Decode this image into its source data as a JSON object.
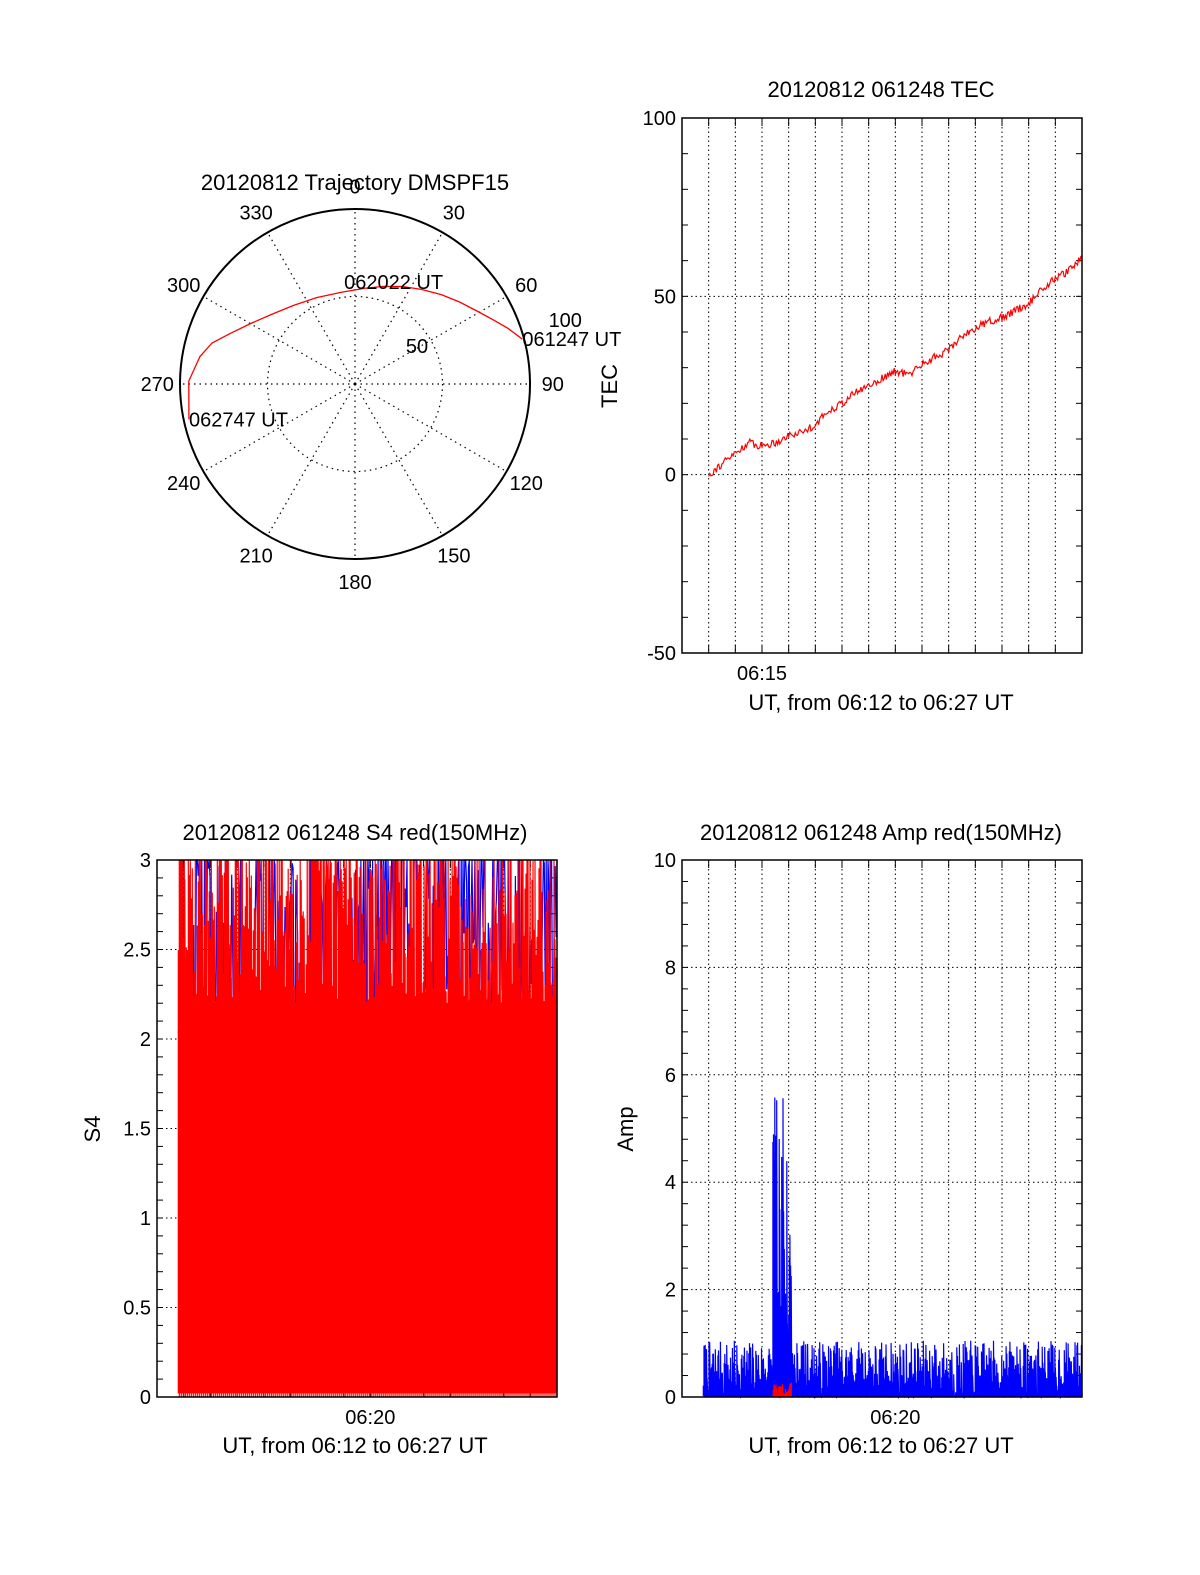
{
  "colors": {
    "primary": "#ff0000",
    "secondary": "#0000ff",
    "axis": "#000000",
    "grid": "#000000"
  },
  "chart_data": [
    {
      "id": "trajectory",
      "type": "polar",
      "title": "20120812 Trajectory DMSPF15",
      "angle_labels": [
        "0",
        "30",
        "60",
        "90",
        "120",
        "150",
        "180",
        "210",
        "240",
        "270",
        "300",
        "330"
      ],
      "angle_values": [
        0,
        30,
        60,
        90,
        120,
        150,
        180,
        210,
        240,
        270,
        300,
        330
      ],
      "radial_range": [
        0,
        100
      ],
      "radial_ticks": [
        {
          "value": 50,
          "label": "50"
        },
        {
          "value": 100,
          "label": "100"
        }
      ],
      "track": [
        {
          "az": 75,
          "r": 99
        },
        {
          "az": 70,
          "r": 93
        },
        {
          "az": 65,
          "r": 87
        },
        {
          "az": 60,
          "r": 82
        },
        {
          "az": 52,
          "r": 76
        },
        {
          "az": 44,
          "r": 71
        },
        {
          "az": 35,
          "r": 66
        },
        {
          "az": 26,
          "r": 62
        },
        {
          "az": 16,
          "r": 58
        },
        {
          "az": 6,
          "r": 55
        },
        {
          "az": 352,
          "r": 53
        },
        {
          "az": 336,
          "r": 54
        },
        {
          "az": 322,
          "r": 57
        },
        {
          "az": 310,
          "r": 62
        },
        {
          "az": 300,
          "r": 69
        },
        {
          "az": 292,
          "r": 77
        },
        {
          "az": 286,
          "r": 85
        },
        {
          "az": 280,
          "r": 90
        },
        {
          "az": 271,
          "r": 95
        },
        {
          "az": 258,
          "r": 97
        }
      ],
      "annotations": [
        {
          "text": "061247 UT",
          "az": 75,
          "r": 99
        },
        {
          "text": "062022 UT",
          "az": 20,
          "r": 62
        },
        {
          "text": "062747 UT",
          "az": 258,
          "r": 97
        }
      ]
    },
    {
      "id": "tec",
      "type": "line",
      "title": "20120812 061248 TEC",
      "ylabel": "TEC",
      "xlabel": "UT, from 06:12 to 06:27 UT",
      "xlim": [
        0,
        15
      ],
      "ylim": [
        -50,
        100
      ],
      "yticks": [
        -50,
        0,
        50,
        100
      ],
      "xticks": [
        {
          "value": 3,
          "label": "06:15"
        }
      ],
      "x_start_label": "06:12",
      "series": [
        {
          "color": "primary",
          "x": [
            1,
            1.5,
            2,
            2.5,
            3,
            3.5,
            4,
            4.5,
            5,
            5.5,
            6,
            6.5,
            7,
            7.5,
            8,
            8.5,
            9,
            9.5,
            10,
            10.5,
            11,
            11.5,
            12,
            12.5,
            13,
            13.5,
            14,
            14.5,
            15
          ],
          "y": [
            0,
            3,
            6,
            9,
            8,
            9,
            11,
            12,
            14,
            18,
            20,
            23,
            25,
            27,
            29,
            28,
            31,
            33,
            35,
            39,
            41,
            43,
            44,
            46,
            48,
            52,
            55,
            57,
            61
          ]
        }
      ]
    },
    {
      "id": "s4",
      "type": "line",
      "title": "20120812 061248 S4 red(150MHz)",
      "ylabel": "S4",
      "xlabel": "UT, from 06:12 to 06:27 UT",
      "xlim": [
        0,
        15
      ],
      "ylim": [
        0,
        3
      ],
      "yticks": [
        0,
        0.5,
        1,
        1.5,
        2,
        2.5,
        3
      ],
      "xticks": [
        {
          "value": 8,
          "label": "06:20"
        }
      ],
      "x_start_label": "06:12",
      "series": [
        {
          "color": "secondary",
          "seed": 11,
          "x_range": [
            0.8,
            15
          ],
          "samples": 420,
          "mean": 2.5,
          "noise": 0.9,
          "dips": [
            {
              "x": 3.4,
              "w": 0.5,
              "v": 0.28
            },
            {
              "x": 1.2,
              "w": 0.3,
              "v": 1.3
            },
            {
              "x": 5.5,
              "w": 0.4,
              "v": 1.0
            },
            {
              "x": 7.0,
              "w": 0.3,
              "v": 1.1
            }
          ]
        },
        {
          "color": "primary",
          "seed": 29,
          "x_range": [
            0.8,
            15
          ],
          "samples": 380,
          "mean": 2.8,
          "noise": 0.6
        }
      ]
    },
    {
      "id": "amp",
      "type": "line",
      "title": "20120812 061248 Amp red(150MHz)",
      "ylabel": "Amp",
      "xlabel": "UT, from 06:12 to 06:27 UT",
      "xlim": [
        0,
        15
      ],
      "ylim": [
        0,
        10
      ],
      "yticks": [
        0,
        2,
        4,
        6,
        8,
        10
      ],
      "xticks": [
        {
          "value": 8,
          "label": "06:20"
        }
      ],
      "x_start_label": "06:12",
      "series": [
        {
          "color": "secondary",
          "seed": 7,
          "x_range": [
            0.8,
            15
          ],
          "samples": 600,
          "mean": 0.5,
          "noise": 0.55,
          "bursts": [
            {
              "x0": 3.4,
              "x1": 4.1,
              "v": 4.8
            }
          ]
        },
        {
          "color": "primary",
          "seed": 3,
          "x_range": [
            3.4,
            4.1
          ],
          "samples": 30,
          "mean": 0.12,
          "noise": 0.15
        }
      ]
    }
  ]
}
